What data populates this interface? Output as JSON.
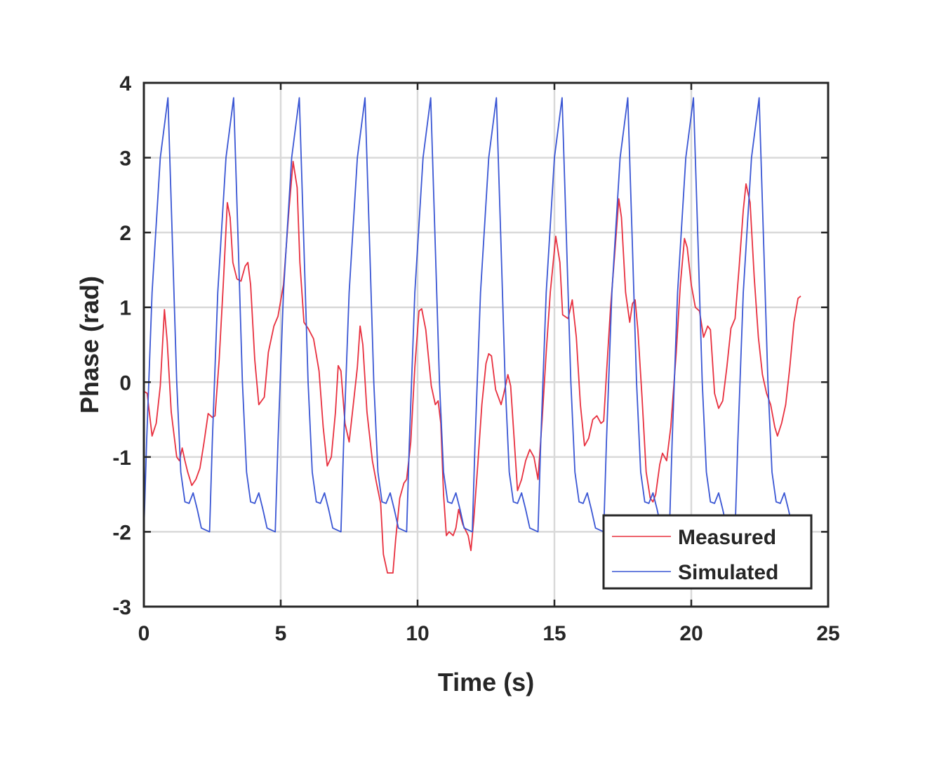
{
  "chart_data": {
    "type": "line",
    "title": "",
    "xlabel": "Time (s)",
    "ylabel": "Phase (rad)",
    "xlim": [
      0,
      25
    ],
    "ylim": [
      -3,
      4
    ],
    "x_ticks": [
      0,
      5,
      10,
      15,
      20,
      25
    ],
    "y_ticks": [
      -3,
      -2,
      -1,
      0,
      1,
      2,
      3,
      4
    ],
    "x_tick_labels": [
      "0",
      "5",
      "10",
      "15",
      "20",
      "25"
    ],
    "y_tick_labels": [
      "-3",
      "-2",
      "-1",
      "0",
      "1",
      "2",
      "3",
      "4"
    ],
    "grid": true,
    "legend_position": "bottom-right",
    "series": [
      {
        "name": "Measured",
        "color": "#e8303f",
        "points": [
          [
            0,
            -0.12
          ],
          [
            0.12,
            -0.15
          ],
          [
            0.3,
            -0.72
          ],
          [
            0.45,
            -0.55
          ],
          [
            0.6,
            -0.05
          ],
          [
            0.75,
            0.97
          ],
          [
            0.85,
            0.55
          ],
          [
            1.0,
            -0.4
          ],
          [
            1.2,
            -1.0
          ],
          [
            1.3,
            -1.05
          ],
          [
            1.4,
            -0.88
          ],
          [
            1.5,
            -1.05
          ],
          [
            1.6,
            -1.2
          ],
          [
            1.75,
            -1.38
          ],
          [
            1.9,
            -1.3
          ],
          [
            2.05,
            -1.15
          ],
          [
            2.2,
            -0.8
          ],
          [
            2.35,
            -0.42
          ],
          [
            2.5,
            -0.47
          ],
          [
            2.6,
            -0.45
          ],
          [
            2.75,
            0.3
          ],
          [
            2.9,
            1.3
          ],
          [
            3.05,
            2.4
          ],
          [
            3.15,
            2.2
          ],
          [
            3.25,
            1.6
          ],
          [
            3.4,
            1.38
          ],
          [
            3.55,
            1.35
          ],
          [
            3.7,
            1.55
          ],
          [
            3.8,
            1.6
          ],
          [
            3.9,
            1.3
          ],
          [
            4.05,
            0.3
          ],
          [
            4.2,
            -0.3
          ],
          [
            4.4,
            -0.2
          ],
          [
            4.55,
            0.4
          ],
          [
            4.75,
            0.75
          ],
          [
            4.9,
            0.88
          ],
          [
            5.1,
            1.3
          ],
          [
            5.3,
            2.3
          ],
          [
            5.45,
            2.95
          ],
          [
            5.6,
            2.6
          ],
          [
            5.7,
            1.6
          ],
          [
            5.85,
            0.8
          ],
          [
            6.0,
            0.72
          ],
          [
            6.2,
            0.58
          ],
          [
            6.4,
            0.15
          ],
          [
            6.55,
            -0.6
          ],
          [
            6.7,
            -1.12
          ],
          [
            6.85,
            -1.0
          ],
          [
            7.0,
            -0.4
          ],
          [
            7.1,
            0.22
          ],
          [
            7.2,
            0.15
          ],
          [
            7.35,
            -0.55
          ],
          [
            7.5,
            -0.8
          ],
          [
            7.65,
            -0.3
          ],
          [
            7.8,
            0.2
          ],
          [
            7.9,
            0.75
          ],
          [
            8.0,
            0.5
          ],
          [
            8.15,
            -0.4
          ],
          [
            8.35,
            -1.05
          ],
          [
            8.5,
            -1.35
          ],
          [
            8.65,
            -1.62
          ],
          [
            8.75,
            -2.3
          ],
          [
            8.9,
            -2.55
          ],
          [
            9.1,
            -2.55
          ],
          [
            9.2,
            -2.1
          ],
          [
            9.35,
            -1.55
          ],
          [
            9.5,
            -1.35
          ],
          [
            9.6,
            -1.3
          ],
          [
            9.75,
            -0.8
          ],
          [
            9.9,
            0.2
          ],
          [
            10.05,
            0.95
          ],
          [
            10.15,
            0.98
          ],
          [
            10.3,
            0.7
          ],
          [
            10.5,
            -0.05
          ],
          [
            10.65,
            -0.3
          ],
          [
            10.75,
            -0.25
          ],
          [
            10.85,
            -0.55
          ],
          [
            10.95,
            -1.5
          ],
          [
            11.05,
            -2.05
          ],
          [
            11.15,
            -2.0
          ],
          [
            11.3,
            -2.05
          ],
          [
            11.4,
            -1.95
          ],
          [
            11.5,
            -1.7
          ],
          [
            11.65,
            -1.9
          ],
          [
            11.85,
            -2.05
          ],
          [
            11.95,
            -2.25
          ],
          [
            12.05,
            -1.85
          ],
          [
            12.2,
            -1.1
          ],
          [
            12.35,
            -0.3
          ],
          [
            12.5,
            0.25
          ],
          [
            12.6,
            0.38
          ],
          [
            12.7,
            0.35
          ],
          [
            12.85,
            -0.1
          ],
          [
            13.05,
            -0.3
          ],
          [
            13.15,
            -0.15
          ],
          [
            13.3,
            0.1
          ],
          [
            13.4,
            -0.05
          ],
          [
            13.5,
            -0.6
          ],
          [
            13.65,
            -1.45
          ],
          [
            13.8,
            -1.3
          ],
          [
            13.95,
            -1.05
          ],
          [
            14.1,
            -0.9
          ],
          [
            14.25,
            -1.0
          ],
          [
            14.4,
            -1.3
          ],
          [
            14.55,
            -0.5
          ],
          [
            14.7,
            0.4
          ],
          [
            14.85,
            1.2
          ],
          [
            15.05,
            1.95
          ],
          [
            15.2,
            1.6
          ],
          [
            15.3,
            0.9
          ],
          [
            15.5,
            0.85
          ],
          [
            15.65,
            1.1
          ],
          [
            15.8,
            0.6
          ],
          [
            15.95,
            -0.3
          ],
          [
            16.1,
            -0.85
          ],
          [
            16.25,
            -0.75
          ],
          [
            16.4,
            -0.5
          ],
          [
            16.55,
            -0.45
          ],
          [
            16.7,
            -0.55
          ],
          [
            16.8,
            -0.52
          ],
          [
            16.9,
            0.1
          ],
          [
            17.05,
            1.0
          ],
          [
            17.2,
            1.7
          ],
          [
            17.35,
            2.45
          ],
          [
            17.45,
            2.2
          ],
          [
            17.6,
            1.2
          ],
          [
            17.75,
            0.8
          ],
          [
            17.85,
            1.05
          ],
          [
            17.95,
            1.1
          ],
          [
            18.05,
            0.7
          ],
          [
            18.2,
            -0.2
          ],
          [
            18.35,
            -1.2
          ],
          [
            18.5,
            -1.55
          ],
          [
            18.6,
            -1.6
          ],
          [
            18.7,
            -1.5
          ],
          [
            18.85,
            -1.1
          ],
          [
            18.95,
            -0.95
          ],
          [
            19.1,
            -1.05
          ],
          [
            19.25,
            -0.6
          ],
          [
            19.45,
            0.4
          ],
          [
            19.6,
            1.3
          ],
          [
            19.75,
            1.92
          ],
          [
            19.85,
            1.8
          ],
          [
            20.0,
            1.3
          ],
          [
            20.15,
            1.0
          ],
          [
            20.3,
            0.95
          ],
          [
            20.45,
            0.6
          ],
          [
            20.6,
            0.75
          ],
          [
            20.7,
            0.7
          ],
          [
            20.85,
            -0.15
          ],
          [
            21.0,
            -0.35
          ],
          [
            21.15,
            -0.25
          ],
          [
            21.3,
            0.2
          ],
          [
            21.45,
            0.72
          ],
          [
            21.6,
            0.85
          ],
          [
            21.75,
            1.55
          ],
          [
            21.9,
            2.3
          ],
          [
            22.0,
            2.65
          ],
          [
            22.15,
            2.4
          ],
          [
            22.3,
            1.4
          ],
          [
            22.45,
            0.6
          ],
          [
            22.6,
            0.1
          ],
          [
            22.75,
            -0.15
          ],
          [
            22.9,
            -0.3
          ],
          [
            23.05,
            -0.6
          ],
          [
            23.15,
            -0.72
          ],
          [
            23.3,
            -0.55
          ],
          [
            23.45,
            -0.3
          ],
          [
            23.6,
            0.2
          ],
          [
            23.75,
            0.8
          ],
          [
            23.9,
            1.12
          ],
          [
            24.0,
            1.15
          ]
        ]
      },
      {
        "name": "Simulated",
        "color": "#3a56d4",
        "period": 2.4,
        "cycles": 10,
        "cycle_shape": [
          [
            0,
            -2.0
          ],
          [
            0.1,
            -0.8
          ],
          [
            0.3,
            1.2
          ],
          [
            0.6,
            3.0
          ],
          [
            0.88,
            3.8
          ],
          [
            1.05,
            1.8
          ],
          [
            1.2,
            0.0
          ],
          [
            1.35,
            -1.2
          ],
          [
            1.5,
            -1.6
          ],
          [
            1.65,
            -1.62
          ],
          [
            1.8,
            -1.48
          ],
          [
            1.95,
            -1.7
          ],
          [
            2.1,
            -1.95
          ],
          [
            2.4,
            -2.0
          ]
        ]
      }
    ]
  }
}
